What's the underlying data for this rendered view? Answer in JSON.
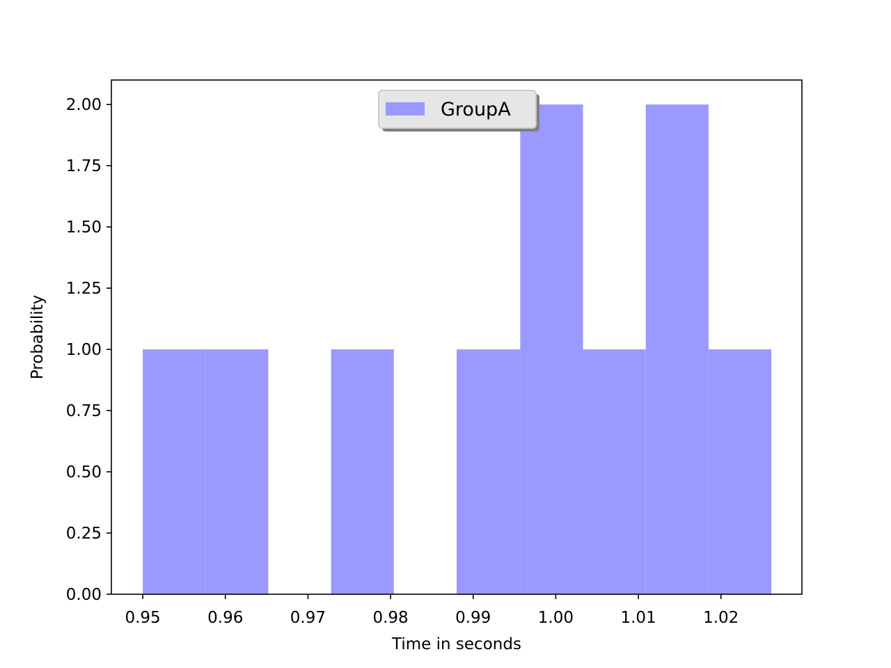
{
  "chart_data": {
    "type": "bar",
    "title": "",
    "xlabel": "Time in seconds",
    "ylabel": "Probability",
    "xlim": [
      0.9462,
      1.0298
    ],
    "ylim": [
      0,
      2.1
    ],
    "x_ticks": [
      "0.95",
      "0.96",
      "0.97",
      "0.98",
      "0.99",
      "1.00",
      "1.01",
      "1.02"
    ],
    "x_tick_values": [
      0.95,
      0.96,
      0.97,
      0.98,
      0.99,
      1.0,
      1.01,
      1.02
    ],
    "y_ticks": [
      "0.00",
      "0.25",
      "0.50",
      "0.75",
      "1.00",
      "1.25",
      "1.50",
      "1.75",
      "2.00"
    ],
    "y_tick_values": [
      0,
      0.25,
      0.5,
      0.75,
      1.0,
      1.25,
      1.5,
      1.75,
      2.0
    ],
    "bin_edges": [
      0.95,
      0.9576,
      0.9652,
      0.9728,
      0.9804,
      0.988,
      0.9957,
      1.0033,
      1.0109,
      1.0185,
      1.0261
    ],
    "series": [
      {
        "name": "GroupA",
        "color": "#9999ff",
        "values": [
          1,
          1,
          0,
          1,
          0,
          1,
          2,
          1,
          2,
          1
        ]
      }
    ],
    "legend": {
      "placement": "upper-center",
      "shadow": true
    },
    "grid": false
  }
}
